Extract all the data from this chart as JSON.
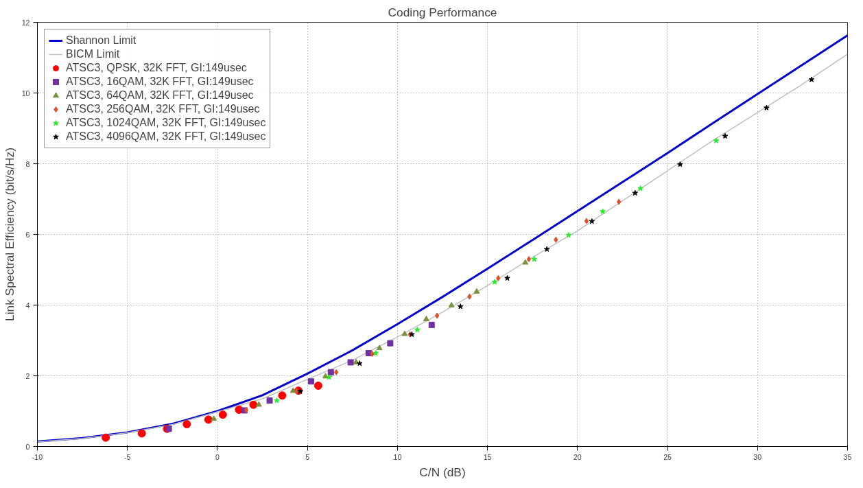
{
  "chart_data": {
    "type": "scatter",
    "title": "Coding Performance",
    "xlabel": "C/N (dB)",
    "ylabel": "Link Spectral Efficiency (bit/s/Hz)",
    "xlim": [
      -10,
      35
    ],
    "ylim": [
      0,
      12
    ],
    "xticks": [
      -10,
      -5,
      0,
      5,
      10,
      15,
      20,
      25,
      30,
      35
    ],
    "yticks": [
      0,
      2,
      4,
      6,
      8,
      10,
      12
    ],
    "grid": true,
    "legend": "top left",
    "series": [
      {
        "name": "Shannon Limit",
        "type": "line",
        "color": "#0000cc",
        "line_style": "solid",
        "x": [
          -10,
          -7.5,
          -5,
          -2.5,
          0,
          2.5,
          5,
          7.5,
          10,
          12.5,
          15,
          17.5,
          20,
          22.5,
          25,
          27.5,
          30,
          32.5,
          35
        ],
        "values": [
          0.14,
          0.24,
          0.4,
          0.64,
          1.0,
          1.45,
          2.06,
          2.72,
          3.46,
          4.23,
          5.03,
          5.84,
          6.66,
          7.48,
          8.3,
          9.14,
          9.97,
          10.8,
          11.63
        ]
      },
      {
        "name": "BICM Limit",
        "type": "line",
        "color": "#c0c0c0",
        "line_style": "solid",
        "x": [
          -10,
          -7.5,
          -5,
          -2.5,
          0,
          2.5,
          5,
          7.5,
          10,
          12.5,
          15,
          17.5,
          20,
          22.5,
          25,
          27.5,
          30,
          32.5,
          35
        ],
        "values": [
          0.13,
          0.23,
          0.39,
          0.62,
          0.98,
          1.35,
          1.9,
          2.44,
          3.1,
          3.8,
          4.55,
          5.35,
          6.1,
          6.95,
          7.8,
          8.65,
          9.45,
          10.25,
          11.1
        ]
      },
      {
        "name": "ATSC3, QPSK, 32K FFT, GI:149usec",
        "marker": "circle",
        "color": "#ff0000",
        "x": [
          -6.2,
          -4.2,
          -2.8,
          -1.7,
          -0.5,
          0.3,
          1.2,
          2.0,
          3.6,
          4.5,
          5.6
        ],
        "values": [
          0.25,
          0.37,
          0.5,
          0.63,
          0.76,
          0.9,
          1.04,
          1.18,
          1.44,
          1.58,
          1.72
        ]
      },
      {
        "name": "ATSC3, 16QAM, 32K FFT, GI:149usec",
        "marker": "square",
        "color": "#7030a0",
        "x": [
          -2.7,
          1.5,
          2.9,
          5.2,
          6.3,
          7.4,
          8.4,
          9.6,
          11.9
        ],
        "values": [
          0.5,
          1.02,
          1.3,
          1.84,
          2.1,
          2.38,
          2.64,
          2.92,
          3.44
        ]
      },
      {
        "name": "ATSC3, 64QAM, 32K FFT, GI:149usec",
        "marker": "triangle",
        "color": "#77933c",
        "x": [
          -0.2,
          2.3,
          4.2,
          6.0,
          7.7,
          9.0,
          10.4,
          11.6,
          13.0,
          14.4,
          17.1
        ],
        "values": [
          0.78,
          1.18,
          1.57,
          1.98,
          2.38,
          2.78,
          3.18,
          3.6,
          3.99,
          4.38,
          5.2
        ]
      },
      {
        "name": "ATSC3, 256QAM, 32K FFT, GI:149usec",
        "marker": "diamond",
        "color": "#e0502a",
        "x": [
          1.6,
          4.4,
          6.6,
          8.6,
          10.7,
          12.2,
          14.0,
          15.6,
          17.3,
          18.8,
          20.5,
          22.3
        ],
        "values": [
          1.03,
          1.57,
          2.1,
          2.62,
          3.17,
          3.7,
          4.24,
          4.76,
          5.3,
          5.85,
          6.38,
          6.92
        ]
      },
      {
        "name": "ATSC3, 1024QAM, 32K FFT, GI:149usec",
        "marker": "star",
        "color": "#22ee22",
        "x": [
          3.3,
          6.2,
          8.8,
          11.1,
          15.4,
          17.6,
          19.5,
          21.4,
          23.5,
          27.7
        ],
        "values": [
          1.3,
          1.96,
          2.64,
          3.3,
          4.65,
          5.3,
          5.98,
          6.65,
          7.3,
          8.65
        ]
      },
      {
        "name": "ATSC3, 4096QAM, 32K FFT, GI:149usec",
        "marker": "star",
        "color": "#000000",
        "x": [
          4.6,
          7.9,
          10.8,
          13.5,
          16.1,
          18.3,
          20.8,
          23.2,
          25.7,
          28.2,
          30.5,
          33.0
        ],
        "values": [
          1.56,
          2.35,
          3.17,
          3.96,
          4.76,
          5.58,
          6.37,
          7.17,
          7.98,
          8.78,
          9.58,
          10.38
        ]
      }
    ]
  }
}
